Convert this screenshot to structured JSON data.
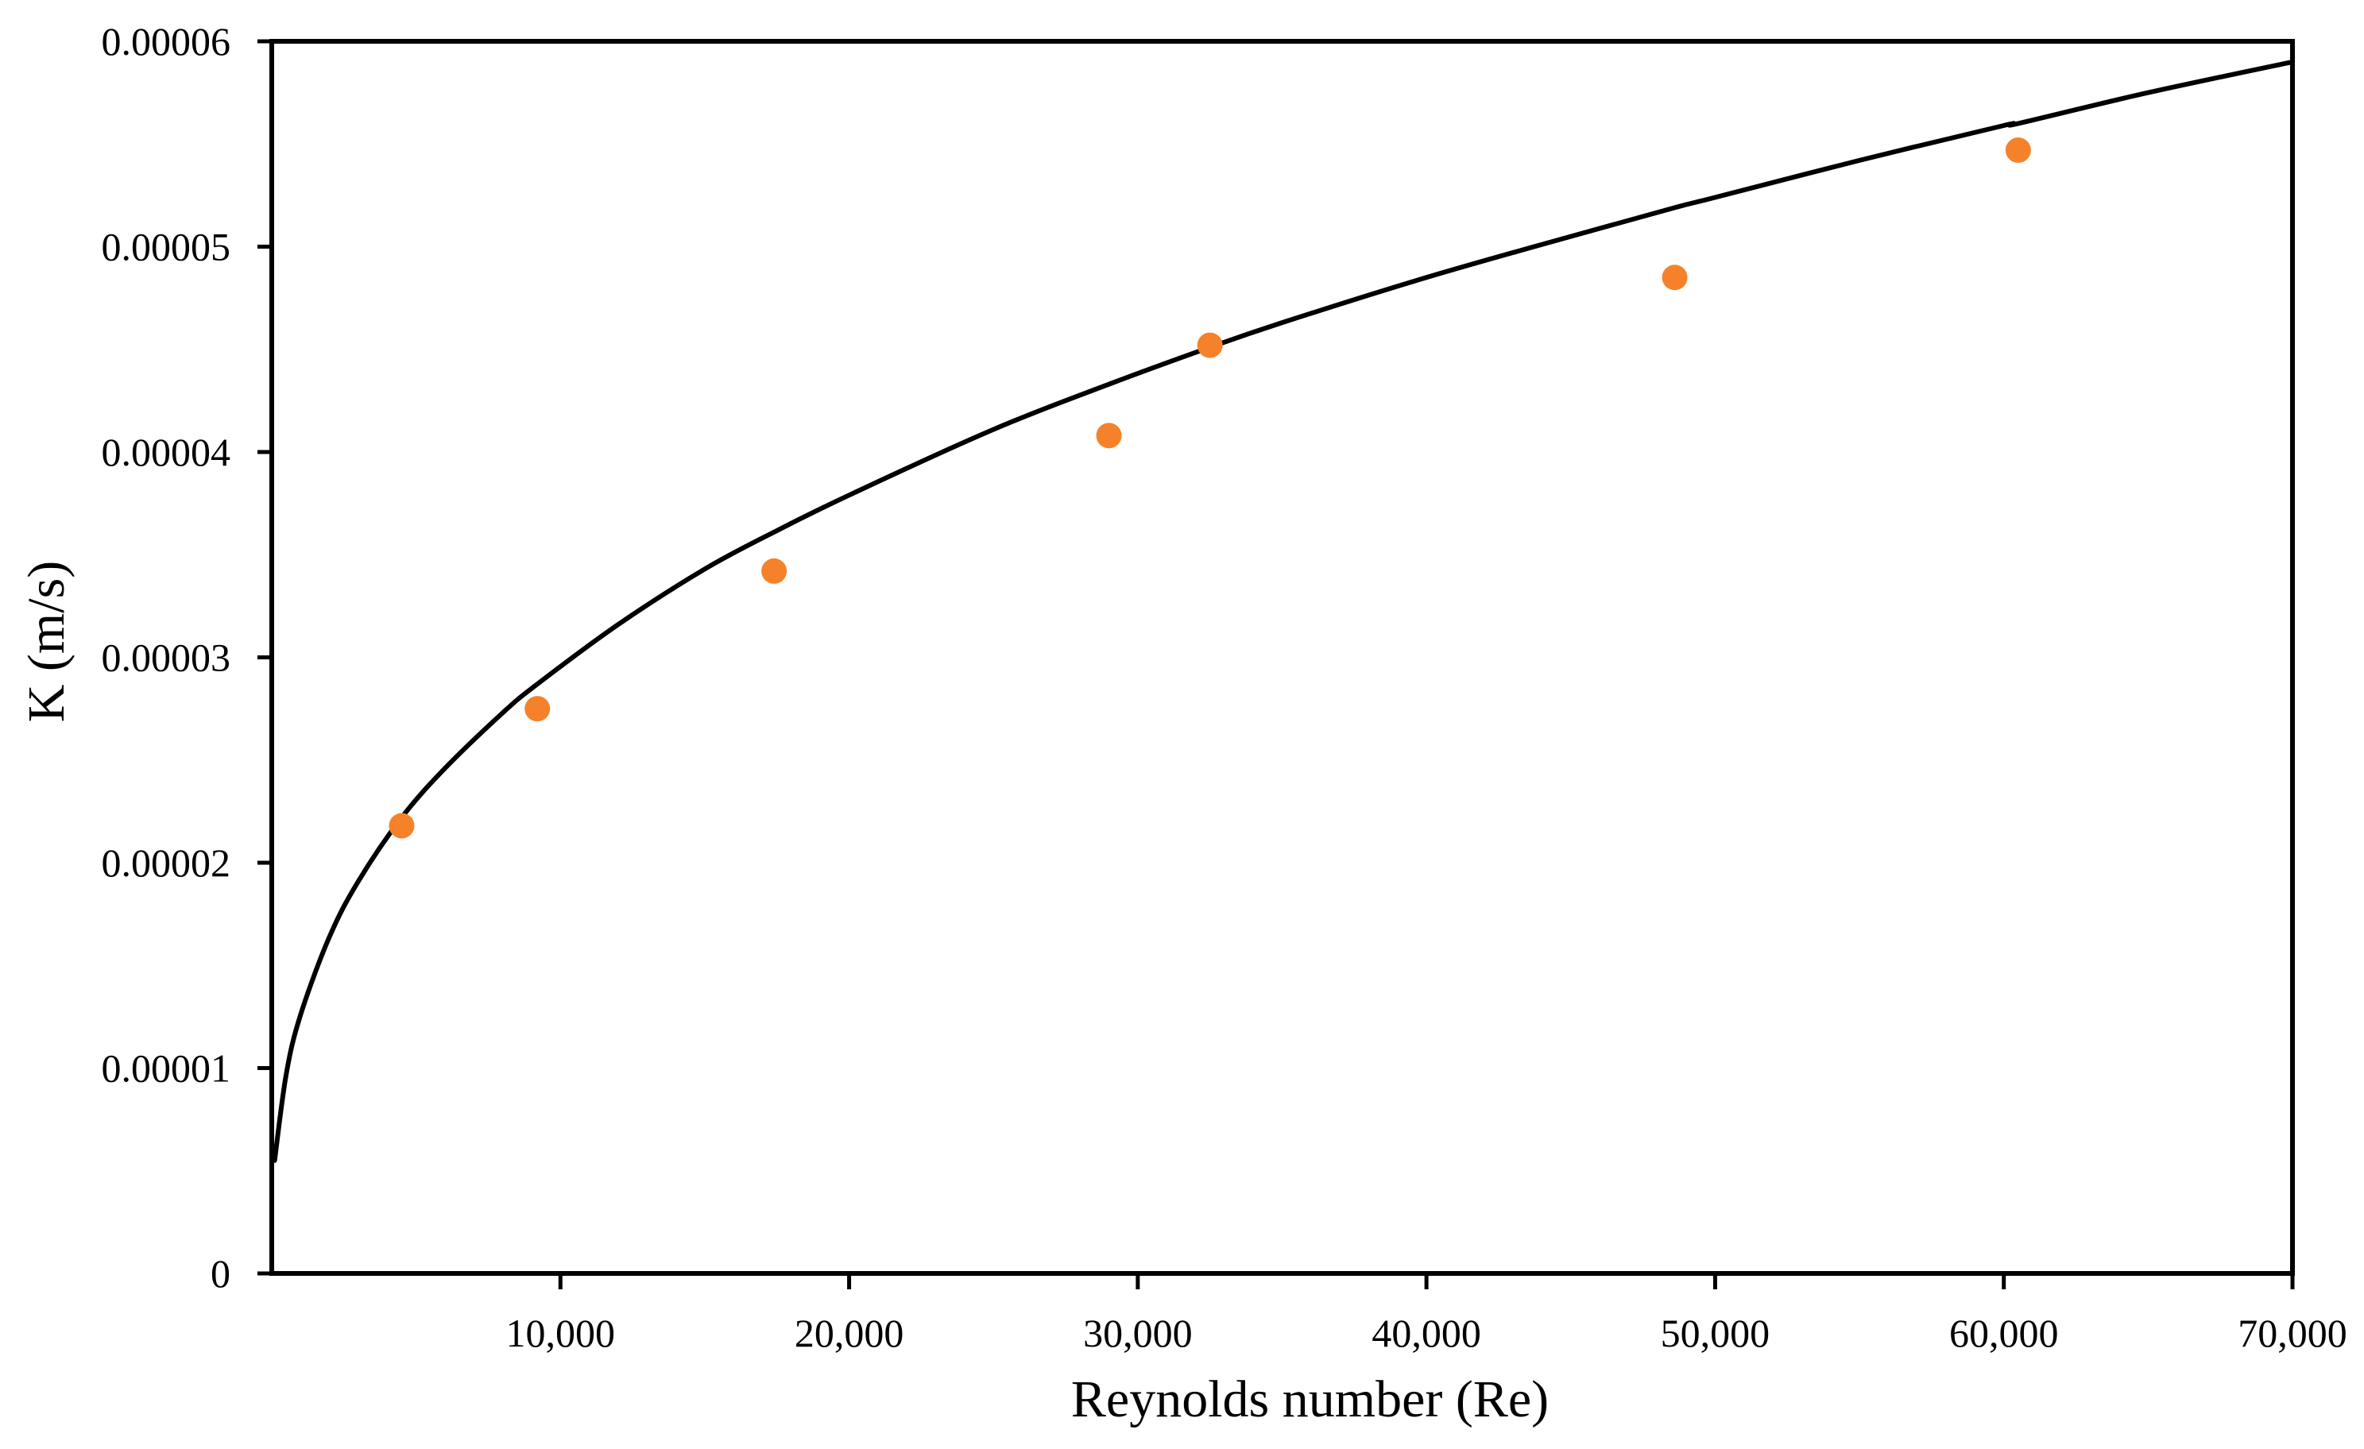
{
  "chart_data": {
    "type": "scatter",
    "title": "",
    "xlabel": "Reynolds number (Re)",
    "ylabel": "K (m/s)",
    "xlim": [
      0,
      70000
    ],
    "ylim": [
      0,
      6e-05
    ],
    "x_ticks": [
      10000,
      20000,
      30000,
      40000,
      50000,
      60000,
      70000
    ],
    "x_tick_labels": [
      "10,000",
      "20,000",
      "30,000",
      "40,000",
      "50,000",
      "60,000",
      "70,000"
    ],
    "y_ticks": [
      0,
      1e-05,
      2e-05,
      3e-05,
      4e-05,
      5e-05,
      6e-05
    ],
    "y_tick_labels": [
      "0",
      "0.00001",
      "0.00002",
      "0.00003",
      "0.00004",
      "0.00005",
      "0.00006"
    ],
    "grid": false,
    "legend": "none",
    "marker_color": "#f5822a",
    "line_color": "#000000",
    "series": [
      {
        "type": "scatter",
        "x": [
          4500,
          9200,
          17400,
          29000,
          32500,
          48600,
          60500
        ],
        "y": [
          2.18e-05,
          2.75e-05,
          3.42e-05,
          4.08e-05,
          4.52e-05,
          4.85e-05,
          5.47e-05
        ]
      },
      {
        "type": "line",
        "fit": "power",
        "x": [
          100,
          500,
          1000,
          2000,
          3000,
          4500,
          6000,
          8000,
          9200,
          12000,
          15000,
          17400,
          20000,
          25000,
          29000,
          32500,
          35000,
          40000,
          45000,
          48600,
          50000,
          55000,
          60000,
          60500,
          65000,
          70000
        ],
        "y": [
          5.5e-06,
          9.7e-06,
          1.26e-05,
          1.64e-05,
          1.91e-05,
          2.22e-05,
          2.46e-05,
          2.73e-05,
          2.87e-05,
          3.16e-05,
          3.43e-05,
          3.61e-05,
          3.79e-05,
          4.11e-05,
          4.33e-05,
          4.51e-05,
          4.63e-05,
          4.85e-05,
          5.05e-05,
          5.19e-05,
          5.24e-05,
          5.42e-05,
          5.59e-05,
          5.6e-05,
          5.75e-05,
          5.9e-05
        ]
      }
    ]
  }
}
